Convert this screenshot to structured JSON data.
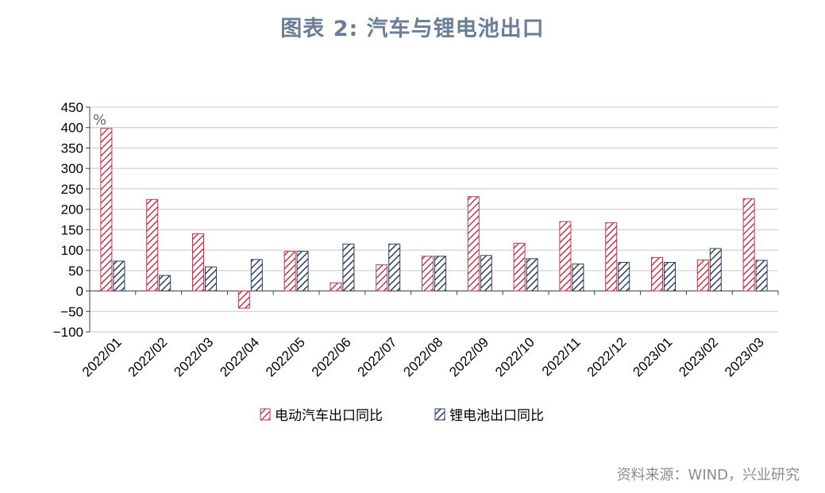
{
  "title": "图表 2:  汽车与锂电池出口",
  "source": "资料来源：WIND，兴业研究",
  "colors": {
    "title": "#6a7f97",
    "series1": "#c0394b",
    "series2": "#2b3f5c",
    "grid": "#c8c8c8",
    "source": "#8c8c8c"
  },
  "chart_data": {
    "type": "bar",
    "unit": "%",
    "categories": [
      "2022/01",
      "2022/02",
      "2022/03",
      "2022/04",
      "2022/05",
      "2022/06",
      "2022/07",
      "2022/08",
      "2022/09",
      "2022/10",
      "2022/11",
      "2022/12",
      "2023/01",
      "2023/02",
      "2023/03"
    ],
    "series": [
      {
        "name": "电动汽车出口同比",
        "color": "#c0394b",
        "pattern": "diagonal-hatch",
        "values": [
          398,
          224,
          140,
          -42,
          97,
          20,
          64,
          85,
          231,
          117,
          170,
          167,
          82,
          76,
          226
        ]
      },
      {
        "name": "锂电池出口同比",
        "color": "#2b3f5c",
        "pattern": "diagonal-hatch",
        "values": [
          73,
          38,
          59,
          77,
          97,
          115,
          115,
          85,
          87,
          79,
          66,
          70,
          70,
          104,
          75
        ]
      }
    ],
    "yticks": [
      450,
      400,
      350,
      300,
      250,
      200,
      150,
      100,
      50,
      0,
      -50,
      -100
    ],
    "ylim": [
      -100,
      450
    ],
    "grid": true,
    "legend_position": "bottom"
  }
}
